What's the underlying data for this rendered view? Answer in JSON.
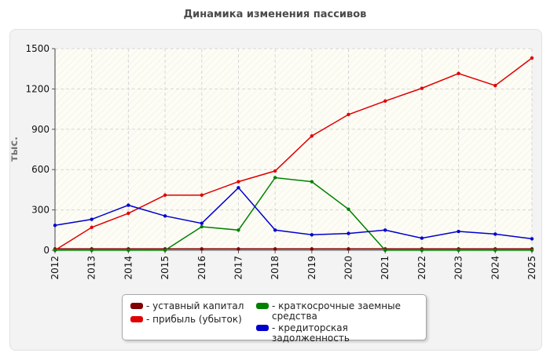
{
  "chart_data": {
    "type": "line",
    "title": "Динамика изменения пассивов",
    "ylabel": "тыс.",
    "xlabel": "",
    "x": [
      "2012",
      "2013",
      "2014",
      "2015",
      "2016",
      "2017",
      "2018",
      "2019",
      "2020",
      "2021",
      "2022",
      "2023",
      "2024",
      "2025"
    ],
    "ylim": [
      0,
      1500
    ],
    "yticks": [
      0,
      300,
      600,
      900,
      1200,
      1500
    ],
    "grid": true,
    "legend_position": "bottom",
    "series": [
      {
        "name": "- уставный капитал",
        "color": "#800000",
        "values": [
          10,
          10,
          10,
          10,
          10,
          10,
          10,
          10,
          10,
          10,
          10,
          10,
          10,
          10
        ]
      },
      {
        "name": "- прибыль (убыток)",
        "color": "#e00000",
        "values": [
          0,
          170,
          275,
          410,
          410,
          510,
          590,
          850,
          1010,
          1110,
          1205,
          1315,
          1225,
          1430
        ]
      },
      {
        "name": "- краткосрочные заемные средства",
        "color": "#008000",
        "values": [
          0,
          0,
          0,
          0,
          175,
          150,
          540,
          510,
          305,
          0,
          0,
          0,
          0,
          0
        ]
      },
      {
        "name": "- кредиторская задолженность",
        "color": "#0000cc",
        "values": [
          185,
          230,
          335,
          255,
          200,
          465,
          150,
          115,
          125,
          150,
          90,
          140,
          120,
          85
        ]
      }
    ]
  }
}
